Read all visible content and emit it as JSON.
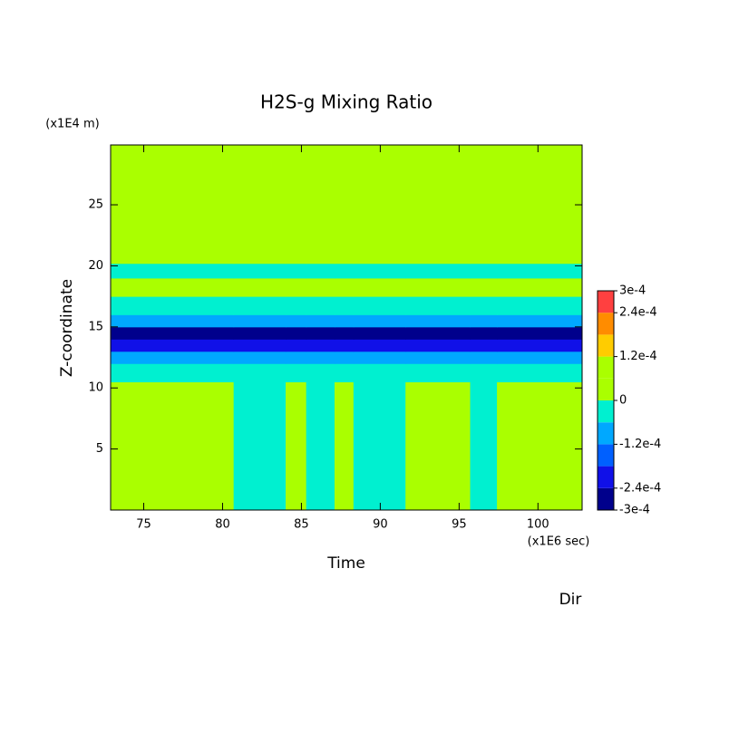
{
  "chart_data": {
    "type": "contour",
    "title": "H2S-g Mixing Ratio",
    "x_label": "Time",
    "x_unit": "(x1E6 sec)",
    "y_label": "Z-coordinate",
    "y_unit": "(x1E4 m)",
    "corner_label": "Dir",
    "xlim": [
      72.9,
      102.8
    ],
    "xticks": [
      75,
      80,
      85,
      90,
      95,
      100
    ],
    "ylim": [
      0,
      29.9
    ],
    "yticks": [
      5,
      10,
      15,
      20,
      25
    ],
    "x_edges": [
      72.9,
      80.7,
      84.0,
      85.3,
      87.1,
      88.3,
      91.6,
      95.7,
      97.4,
      102.8
    ],
    "y_edges": [
      0,
      10.5,
      12,
      13,
      14,
      15,
      16,
      17.5,
      19,
      20.2,
      29.9
    ],
    "z": [
      [
        3e-05,
        -3e-05,
        3e-05,
        -3e-05,
        3e-05,
        -3e-05,
        3e-05,
        -3e-05,
        3e-05
      ],
      [
        -3e-05,
        -3e-05,
        -3e-05,
        -3e-05,
        -3e-05,
        -3e-05,
        -3e-05,
        -3e-05,
        -3e-05
      ],
      [
        -9e-05,
        -9e-05,
        -9e-05,
        -9e-05,
        -9e-05,
        -9e-05,
        -9e-05,
        -9e-05,
        -9e-05
      ],
      [
        -0.00021,
        -0.00021,
        -0.00021,
        -0.00021,
        -0.00021,
        -0.00021,
        -0.00021,
        -0.00021,
        -0.00021
      ],
      [
        -0.00027,
        -0.00027,
        -0.00027,
        -0.00027,
        -0.00027,
        -0.00027,
        -0.00027,
        -0.00027,
        -0.00027
      ],
      [
        -9e-05,
        -9e-05,
        -9e-05,
        -9e-05,
        -9e-05,
        -9e-05,
        -9e-05,
        -9e-05,
        -9e-05
      ],
      [
        -3e-05,
        -3e-05,
        -3e-05,
        -3e-05,
        -3e-05,
        -3e-05,
        -3e-05,
        -3e-05,
        -3e-05
      ],
      [
        3e-05,
        3e-05,
        3e-05,
        3e-05,
        3e-05,
        3e-05,
        3e-05,
        3e-05,
        3e-05
      ],
      [
        -3e-05,
        -3e-05,
        -3e-05,
        -3e-05,
        -3e-05,
        -3e-05,
        -3e-05,
        -3e-05,
        -3e-05
      ],
      [
        3e-05,
        3e-05,
        3e-05,
        3e-05,
        3e-05,
        3e-05,
        3e-05,
        3e-05,
        3e-05
      ]
    ],
    "levels": [
      -0.0003,
      -0.00024,
      -0.00018,
      -0.00012,
      -6e-05,
      0,
      6e-05,
      0.00012,
      0.00018,
      0.00024,
      0.0003
    ],
    "colors": [
      "#00008c",
      "#1010e8",
      "#0060ff",
      "#00a8ff",
      "#00f0d0",
      "#aaff00",
      "#aaff00",
      "#ffcc00",
      "#ff8c00",
      "#ff4040"
    ],
    "colorbar_ticks": [
      {
        "value": 0.0003,
        "label": "3e-4"
      },
      {
        "value": 0.00024,
        "label": "2.4e-4"
      },
      {
        "value": 0.00012,
        "label": "1.2e-4"
      },
      0,
      {
        "value": -0.00012,
        "label": "-1.2e-4"
      },
      {
        "value": -0.00024,
        "label": "-2.4e-4"
      },
      {
        "value": -0.0003,
        "label": "-3e-4"
      }
    ]
  }
}
